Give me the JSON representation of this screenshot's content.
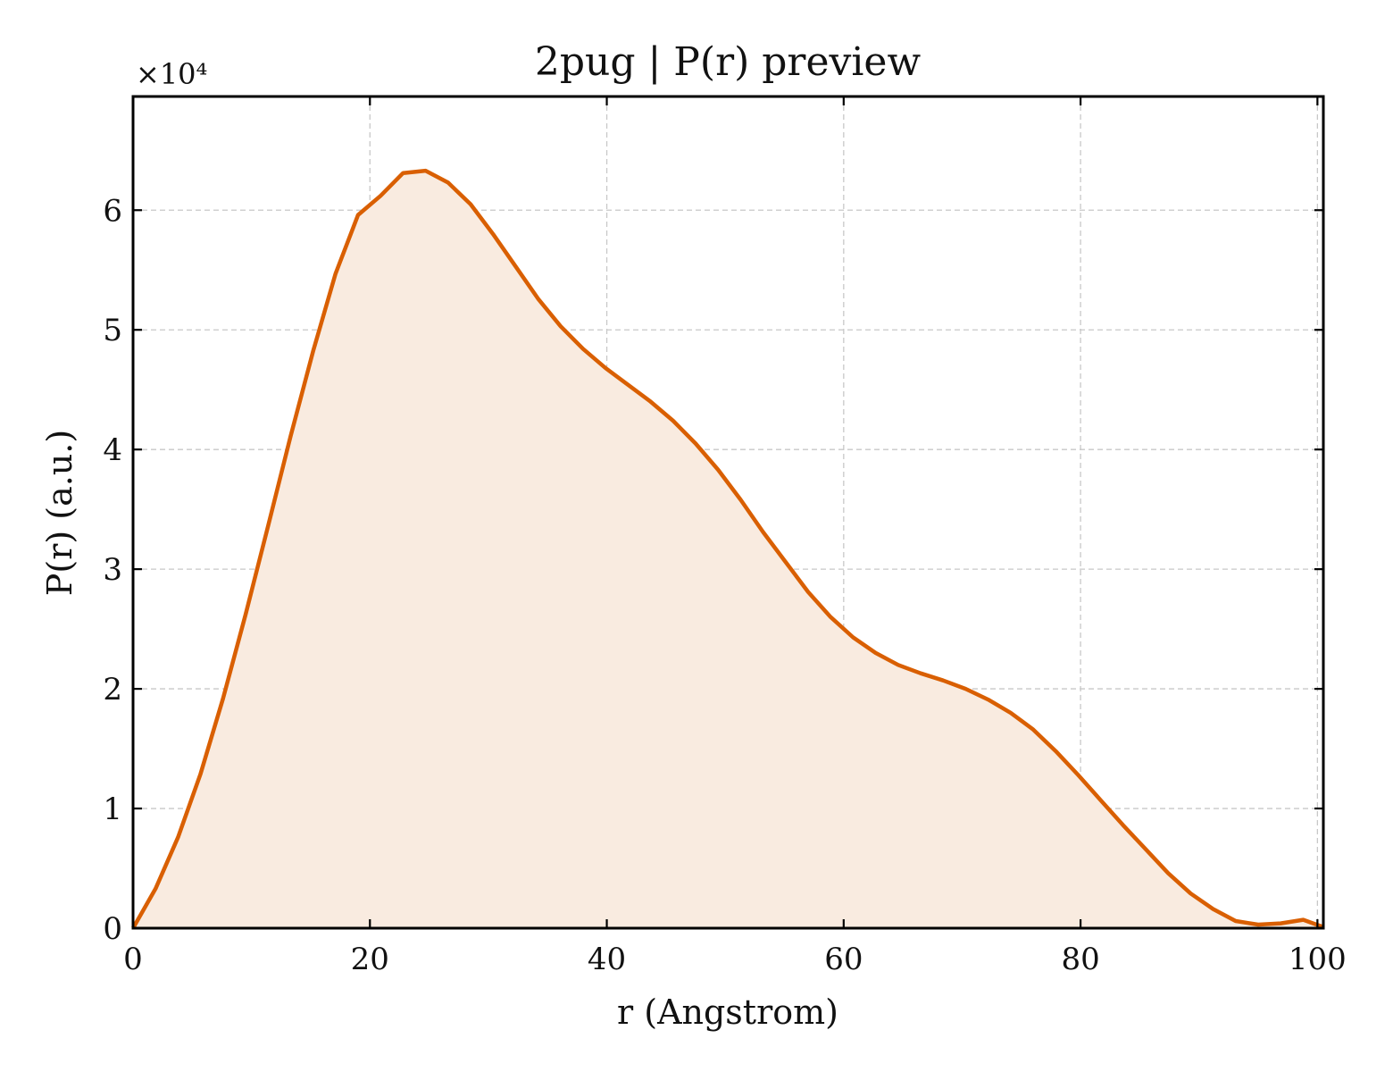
{
  "chart_data": {
    "type": "area",
    "title": "2pug | P(r) preview",
    "xlabel": "r (Angstrom)",
    "ylabel": "P(r) (a.u.)",
    "y_multiplier_label": "×10⁴",
    "xlim": [
      0,
      100.5
    ],
    "ylim": [
      0,
      6.95
    ],
    "x_ticks": [
      0,
      20,
      40,
      60,
      80,
      100
    ],
    "y_ticks": [
      0,
      1,
      2,
      3,
      4,
      5,
      6
    ],
    "grid": true,
    "line_color": "#d95f02",
    "fill_color": "#f9ebe0",
    "series": [
      {
        "x": [
          0,
          1.9,
          3.8,
          5.7,
          7.6,
          9.5,
          11.4,
          13.3,
          15.2,
          17.1,
          19.0,
          20.9,
          22.8,
          24.7,
          26.6,
          28.5,
          30.4,
          32.3,
          34.2,
          36.1,
          38.0,
          39.9,
          41.8,
          43.7,
          45.6,
          47.5,
          49.4,
          51.3,
          53.2,
          55.1,
          57.0,
          58.9,
          60.8,
          62.7,
          64.6,
          66.5,
          68.4,
          70.3,
          72.2,
          74.1,
          76.0,
          77.9,
          79.8,
          81.7,
          83.6,
          85.5,
          87.4,
          89.3,
          91.2,
          93.1,
          95.0,
          96.9,
          98.8,
          100.5
        ],
        "values": [
          0,
          0.33,
          0.76,
          1.29,
          1.92,
          2.62,
          3.36,
          4.11,
          4.82,
          5.47,
          5.96,
          6.12,
          6.31,
          6.33,
          6.23,
          6.05,
          5.8,
          5.53,
          5.26,
          5.03,
          4.84,
          4.68,
          4.54,
          4.4,
          4.24,
          4.05,
          3.83,
          3.58,
          3.31,
          3.06,
          2.81,
          2.6,
          2.43,
          2.3,
          2.2,
          2.13,
          2.07,
          2.0,
          1.91,
          1.8,
          1.66,
          1.48,
          1.28,
          1.07,
          0.86,
          0.66,
          0.46,
          0.29,
          0.16,
          0.06,
          0.03,
          0.04,
          0.07,
          0.01
        ]
      }
    ]
  }
}
